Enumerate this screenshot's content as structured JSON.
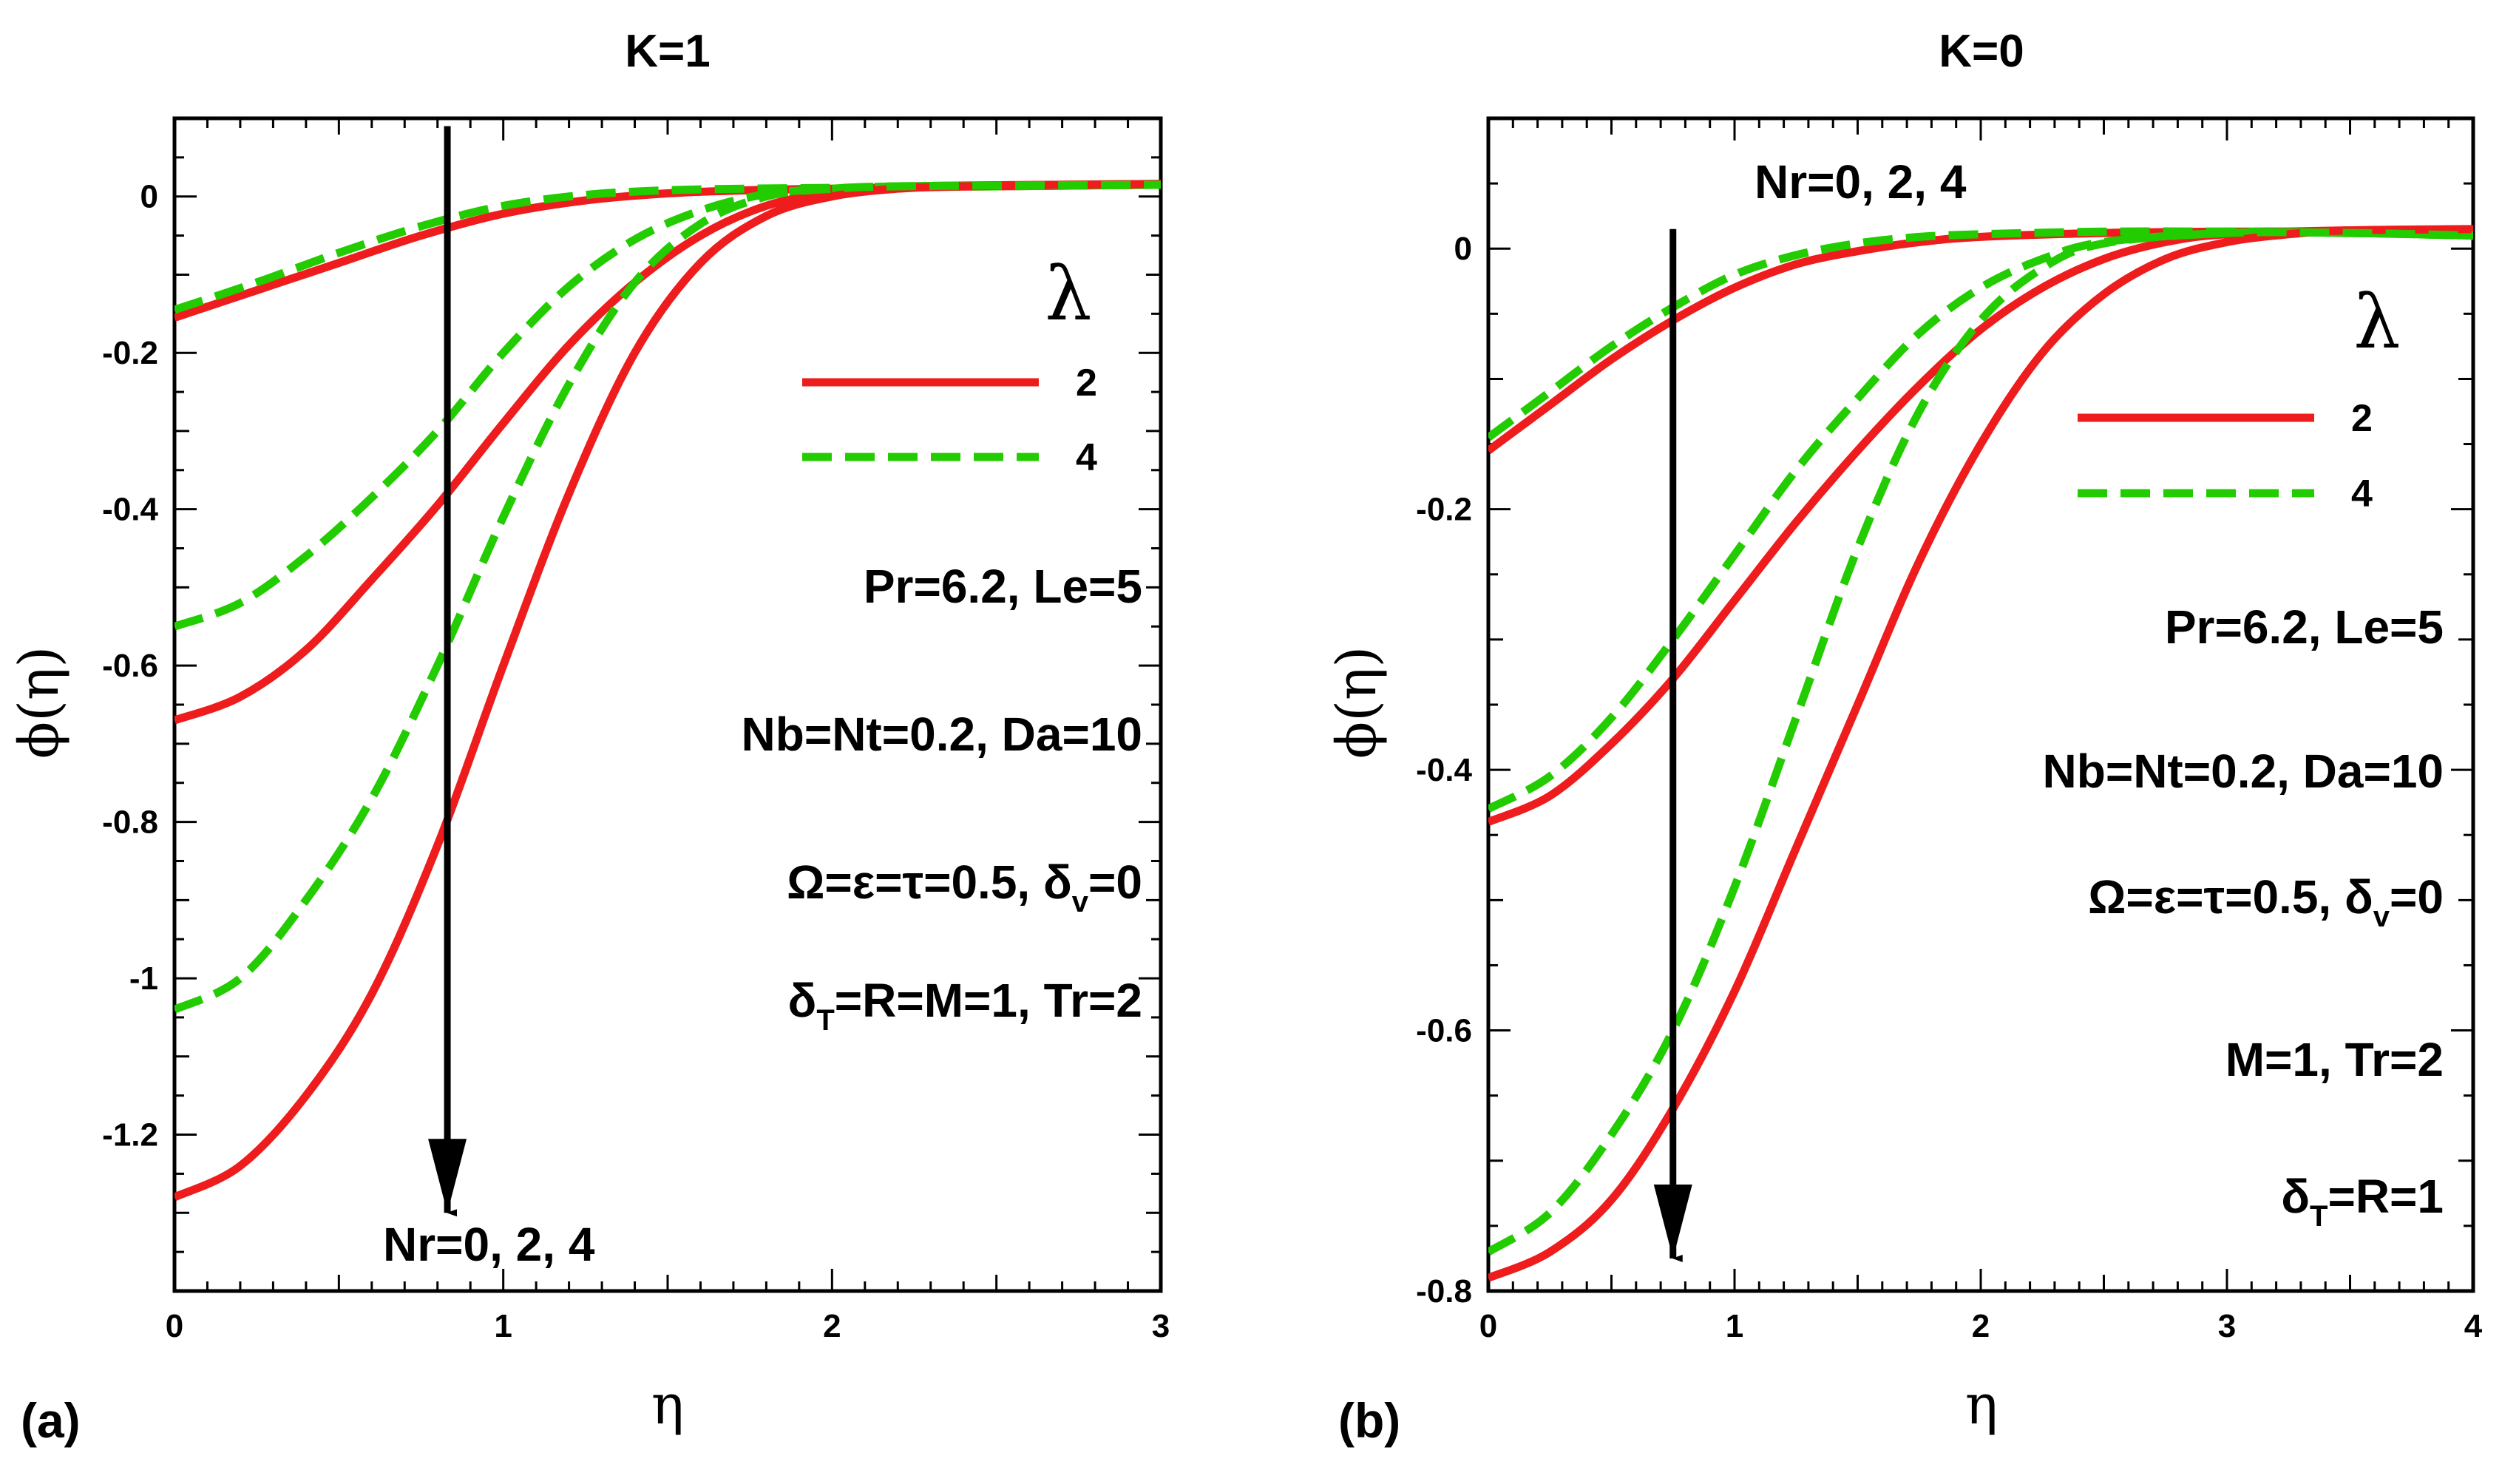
{
  "chart_data": [
    {
      "type": "line",
      "panel_label": "(a)",
      "title": "K=1",
      "xlabel": "η",
      "ylabel": "ϕ(η)",
      "xlim": [
        0,
        3
      ],
      "ylim": [
        -1.4,
        0.1
      ],
      "xticks": [
        "0",
        "1",
        "2",
        "3"
      ],
      "yticks": [
        "0",
        "-0.2",
        "-0.4",
        "-0.6",
        "-0.8",
        "-1",
        "-1.2"
      ],
      "legend": {
        "symbol": "λ",
        "entries": [
          {
            "label": "2",
            "color": "#ee1c1c",
            "style": "solid"
          },
          {
            "label": "4",
            "color": "#22cc00",
            "style": "dashed"
          }
        ]
      },
      "annotations": [
        {
          "text": "Pr=6.2, Le=5"
        },
        {
          "text": "Nb=Nt=0.2, Da=10"
        },
        {
          "greek": "Ω=ε=τ=0.5, δ",
          "sub": "v",
          "rest": "=0"
        },
        {
          "greek": "δ",
          "sub": "T",
          "rest": "=R=M=1, Tr=2"
        }
      ],
      "arrow": {
        "label": "Nr=0, 2, 4",
        "direction": "down",
        "x": 0.83,
        "y_from": 0.09,
        "y_to": -1.3
      },
      "series": [
        {
          "name": "λ=2, Nr=0",
          "lambda": 2,
          "style": "solid",
          "color": "#ee1c1c",
          "x": [
            0,
            0.25,
            0.5,
            0.75,
            1.0,
            1.25,
            1.5,
            1.75,
            2.0,
            2.25,
            2.5,
            2.75,
            3.0
          ],
          "y": [
            -0.155,
            -0.12,
            -0.085,
            -0.05,
            -0.022,
            -0.005,
            0.004,
            0.008,
            0.01,
            0.012,
            0.013,
            0.014,
            0.015
          ]
        },
        {
          "name": "λ=4, Nr=0",
          "lambda": 4,
          "style": "dashed",
          "color": "#22cc00",
          "x": [
            0,
            0.25,
            0.5,
            0.75,
            1.0,
            1.25,
            1.5,
            1.75,
            2.0,
            2.25,
            2.5,
            2.75,
            3.0
          ],
          "y": [
            -0.145,
            -0.11,
            -0.072,
            -0.038,
            -0.012,
            0.002,
            0.008,
            0.01,
            0.011,
            0.012,
            0.013,
            0.014,
            0.015
          ]
        },
        {
          "name": "λ=2, Nr=2",
          "lambda": 2,
          "style": "solid",
          "color": "#ee1c1c",
          "x": [
            0,
            0.2,
            0.4,
            0.6,
            0.8,
            1.0,
            1.2,
            1.4,
            1.6,
            1.8,
            2.0,
            2.2,
            2.4,
            2.7,
            3.0
          ],
          "y": [
            -0.67,
            -0.64,
            -0.58,
            -0.49,
            -0.395,
            -0.29,
            -0.19,
            -0.11,
            -0.05,
            -0.012,
            0.005,
            0.012,
            0.014,
            0.015,
            0.016
          ]
        },
        {
          "name": "λ=4, Nr=2",
          "lambda": 4,
          "style": "dashed",
          "color": "#22cc00",
          "x": [
            0,
            0.2,
            0.4,
            0.6,
            0.8,
            1.0,
            1.2,
            1.4,
            1.6,
            1.8,
            2.0,
            2.2,
            2.5,
            3.0
          ],
          "y": [
            -0.55,
            -0.52,
            -0.46,
            -0.385,
            -0.3,
            -0.2,
            -0.115,
            -0.055,
            -0.018,
            0.003,
            0.01,
            0.013,
            0.014,
            0.015
          ]
        },
        {
          "name": "λ=2, Nr=4",
          "lambda": 2,
          "style": "solid",
          "color": "#ee1c1c",
          "x": [
            0,
            0.2,
            0.4,
            0.6,
            0.8,
            1.0,
            1.2,
            1.4,
            1.6,
            1.8,
            2.0,
            2.2,
            2.4,
            2.7,
            3.0
          ],
          "y": [
            -1.28,
            -1.24,
            -1.15,
            -1.02,
            -0.83,
            -0.6,
            -0.38,
            -0.2,
            -0.085,
            -0.025,
            0.0,
            0.01,
            0.013,
            0.015,
            0.016
          ]
        },
        {
          "name": "λ=4, Nr=4",
          "lambda": 4,
          "style": "dashed",
          "color": "#22cc00",
          "x": [
            0,
            0.2,
            0.4,
            0.6,
            0.8,
            1.0,
            1.2,
            1.4,
            1.6,
            1.8,
            2.0,
            2.2,
            2.5,
            3.0
          ],
          "y": [
            -1.04,
            -1.0,
            -0.9,
            -0.77,
            -0.6,
            -0.41,
            -0.24,
            -0.11,
            -0.035,
            0.0,
            0.01,
            0.013,
            0.014,
            0.015
          ]
        }
      ]
    },
    {
      "type": "line",
      "panel_label": "(b)",
      "title": "K=0",
      "xlabel": "η",
      "ylabel": "ϕ(η)",
      "xlim": [
        0,
        4
      ],
      "ylim": [
        -0.8,
        0.1
      ],
      "xticks": [
        "0",
        "1",
        "2",
        "3",
        "4"
      ],
      "yticks": [
        "0",
        "-0.2",
        "-0.4",
        "-0.6",
        "-0.8"
      ],
      "legend": {
        "symbol": "λ",
        "entries": [
          {
            "label": "2",
            "color": "#ee1c1c",
            "style": "solid"
          },
          {
            "label": "4",
            "color": "#22cc00",
            "style": "dashed"
          }
        ]
      },
      "annotations": [
        {
          "text": "Pr=6.2, Le=5"
        },
        {
          "text": "Nb=Nt=0.2, Da=10"
        },
        {
          "greek": "Ω=ε=τ=0.5, δ",
          "sub": "v",
          "rest": "=0"
        },
        {
          "text": "M=1, Tr=2"
        },
        {
          "greek": "δ",
          "sub": "T",
          "rest": "=R=1"
        }
      ],
      "arrow": {
        "label": "Nr=0, 2, 4",
        "direction": "down",
        "x": 0.75,
        "y_from": 0.015,
        "y_to": -0.775
      },
      "series": [
        {
          "name": "λ=2, Nr=0",
          "lambda": 2,
          "style": "solid",
          "color": "#ee1c1c",
          "x": [
            0,
            0.25,
            0.5,
            0.75,
            1.0,
            1.25,
            1.5,
            1.75,
            2.0,
            2.5,
            3.0,
            3.5,
            4.0
          ],
          "y": [
            -0.155,
            -0.12,
            -0.085,
            -0.055,
            -0.03,
            -0.012,
            -0.002,
            0.005,
            0.009,
            0.012,
            0.013,
            0.013,
            0.013
          ]
        },
        {
          "name": "λ=4, Nr=0",
          "lambda": 4,
          "style": "dashed",
          "color": "#22cc00",
          "x": [
            0,
            0.25,
            0.5,
            0.75,
            1.0,
            1.25,
            1.5,
            1.75,
            2.0,
            2.5,
            3.0,
            3.5,
            4.0
          ],
          "y": [
            -0.145,
            -0.11,
            -0.075,
            -0.045,
            -0.02,
            -0.005,
            0.004,
            0.009,
            0.011,
            0.013,
            0.013,
            0.012,
            0.01
          ]
        },
        {
          "name": "λ=2, Nr=2",
          "lambda": 2,
          "style": "solid",
          "color": "#ee1c1c",
          "x": [
            0,
            0.25,
            0.5,
            0.75,
            1.0,
            1.25,
            1.5,
            1.75,
            2.0,
            2.25,
            2.5,
            2.75,
            3.0,
            3.5,
            4.0
          ],
          "y": [
            -0.44,
            -0.42,
            -0.38,
            -0.33,
            -0.27,
            -0.21,
            -0.155,
            -0.105,
            -0.062,
            -0.03,
            -0.008,
            0.005,
            0.011,
            0.014,
            0.014
          ]
        },
        {
          "name": "λ=4, Nr=2",
          "lambda": 4,
          "style": "dashed",
          "color": "#22cc00",
          "x": [
            0,
            0.25,
            0.5,
            0.75,
            1.0,
            1.25,
            1.5,
            1.75,
            2.0,
            2.25,
            2.5,
            3.0,
            3.5,
            4.0
          ],
          "y": [
            -0.43,
            -0.405,
            -0.36,
            -0.3,
            -0.235,
            -0.17,
            -0.115,
            -0.065,
            -0.03,
            -0.008,
            0.005,
            0.012,
            0.012,
            0.01
          ]
        },
        {
          "name": "λ=2, Nr=4",
          "lambda": 2,
          "style": "solid",
          "color": "#ee1c1c",
          "x": [
            0,
            0.25,
            0.5,
            0.75,
            1.0,
            1.25,
            1.5,
            1.75,
            2.0,
            2.25,
            2.5,
            2.75,
            3.0,
            3.25,
            3.5,
            4.0
          ],
          "y": [
            -0.79,
            -0.77,
            -0.73,
            -0.66,
            -0.57,
            -0.46,
            -0.35,
            -0.24,
            -0.15,
            -0.08,
            -0.035,
            -0.008,
            0.005,
            0.011,
            0.014,
            0.015
          ]
        },
        {
          "name": "λ=4, Nr=4",
          "lambda": 4,
          "style": "dashed",
          "color": "#22cc00",
          "x": [
            0,
            0.25,
            0.5,
            0.75,
            1.0,
            1.25,
            1.5,
            1.75,
            2.0,
            2.25,
            2.5,
            3.0,
            3.5,
            4.0
          ],
          "y": [
            -0.77,
            -0.74,
            -0.68,
            -0.6,
            -0.49,
            -0.36,
            -0.23,
            -0.125,
            -0.055,
            -0.015,
            0.004,
            0.012,
            0.012,
            0.01
          ]
        }
      ]
    }
  ]
}
